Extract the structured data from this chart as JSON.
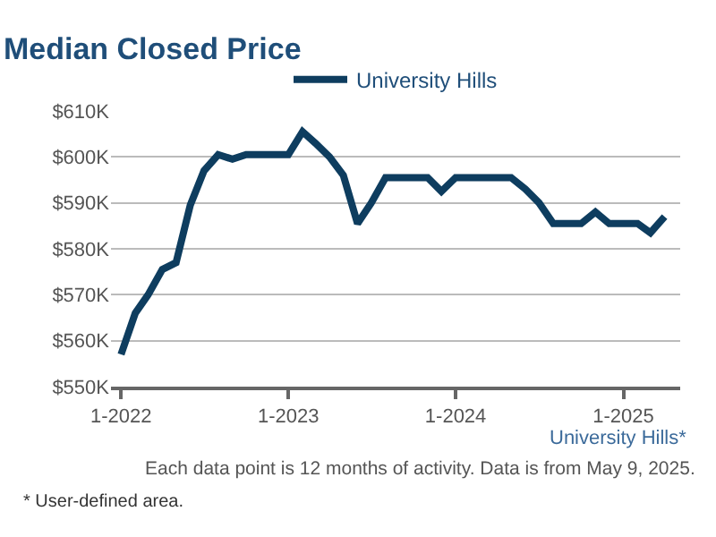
{
  "chart_data": {
    "type": "line",
    "title": "Median Closed Price",
    "x": [
      "2022-01",
      "2022-02",
      "2022-03",
      "2022-04",
      "2022-05",
      "2022-06",
      "2022-07",
      "2022-08",
      "2022-09",
      "2022-10",
      "2022-11",
      "2022-12",
      "2023-01",
      "2023-02",
      "2023-03",
      "2023-04",
      "2023-05",
      "2023-06",
      "2023-07",
      "2023-08",
      "2023-09",
      "2023-10",
      "2023-11",
      "2023-12",
      "2024-01",
      "2024-02",
      "2024-03",
      "2024-04",
      "2024-05",
      "2024-06",
      "2024-07",
      "2024-08",
      "2024-09",
      "2024-10",
      "2024-11",
      "2024-12",
      "2025-01",
      "2025-02",
      "2025-03",
      "2025-04"
    ],
    "series": [
      {
        "name": "University Hills",
        "color": "#0e3d5f",
        "values": [
          557,
          566,
          570,
          575.5,
          577,
          589.5,
          597,
          600.5,
          599.5,
          600.5,
          600.5,
          600.5,
          600.5,
          605.5,
          603,
          600,
          596,
          585.5,
          590,
          595.5,
          595.5,
          595.5,
          595.5,
          592.5,
          595.5,
          595.5,
          595.5,
          595.5,
          595.5,
          593,
          590,
          585.5,
          585.5,
          585.5,
          588,
          585.5,
          585.5,
          585.5,
          583.5,
          587
        ]
      }
    ],
    "ylim": [
      550,
      610
    ],
    "yticks": [
      {
        "value": 550,
        "label": "$550K"
      },
      {
        "value": 560,
        "label": "$560K"
      },
      {
        "value": 570,
        "label": "$570K"
      },
      {
        "value": 580,
        "label": "$580K"
      },
      {
        "value": 590,
        "label": "$590K"
      },
      {
        "value": 600,
        "label": "$600K"
      },
      {
        "value": 610,
        "label": "$610K"
      }
    ],
    "xlim": [
      "2021-12-10",
      "2025-05-05"
    ],
    "xticks": [
      {
        "value": "2022-01",
        "label": "1-2022"
      },
      {
        "value": "2023-01",
        "label": "1-2023"
      },
      {
        "value": "2024-01",
        "label": "1-2024"
      },
      {
        "value": "2025-01",
        "label": "1-2025"
      }
    ],
    "grid": "y",
    "legend": "top",
    "marker": "none",
    "line_style": "solid",
    "annotations": [
      "University Hills*",
      "Each data point is 12 months of activity. Data is from May 9, 2025.",
      "* User-defined area."
    ]
  }
}
